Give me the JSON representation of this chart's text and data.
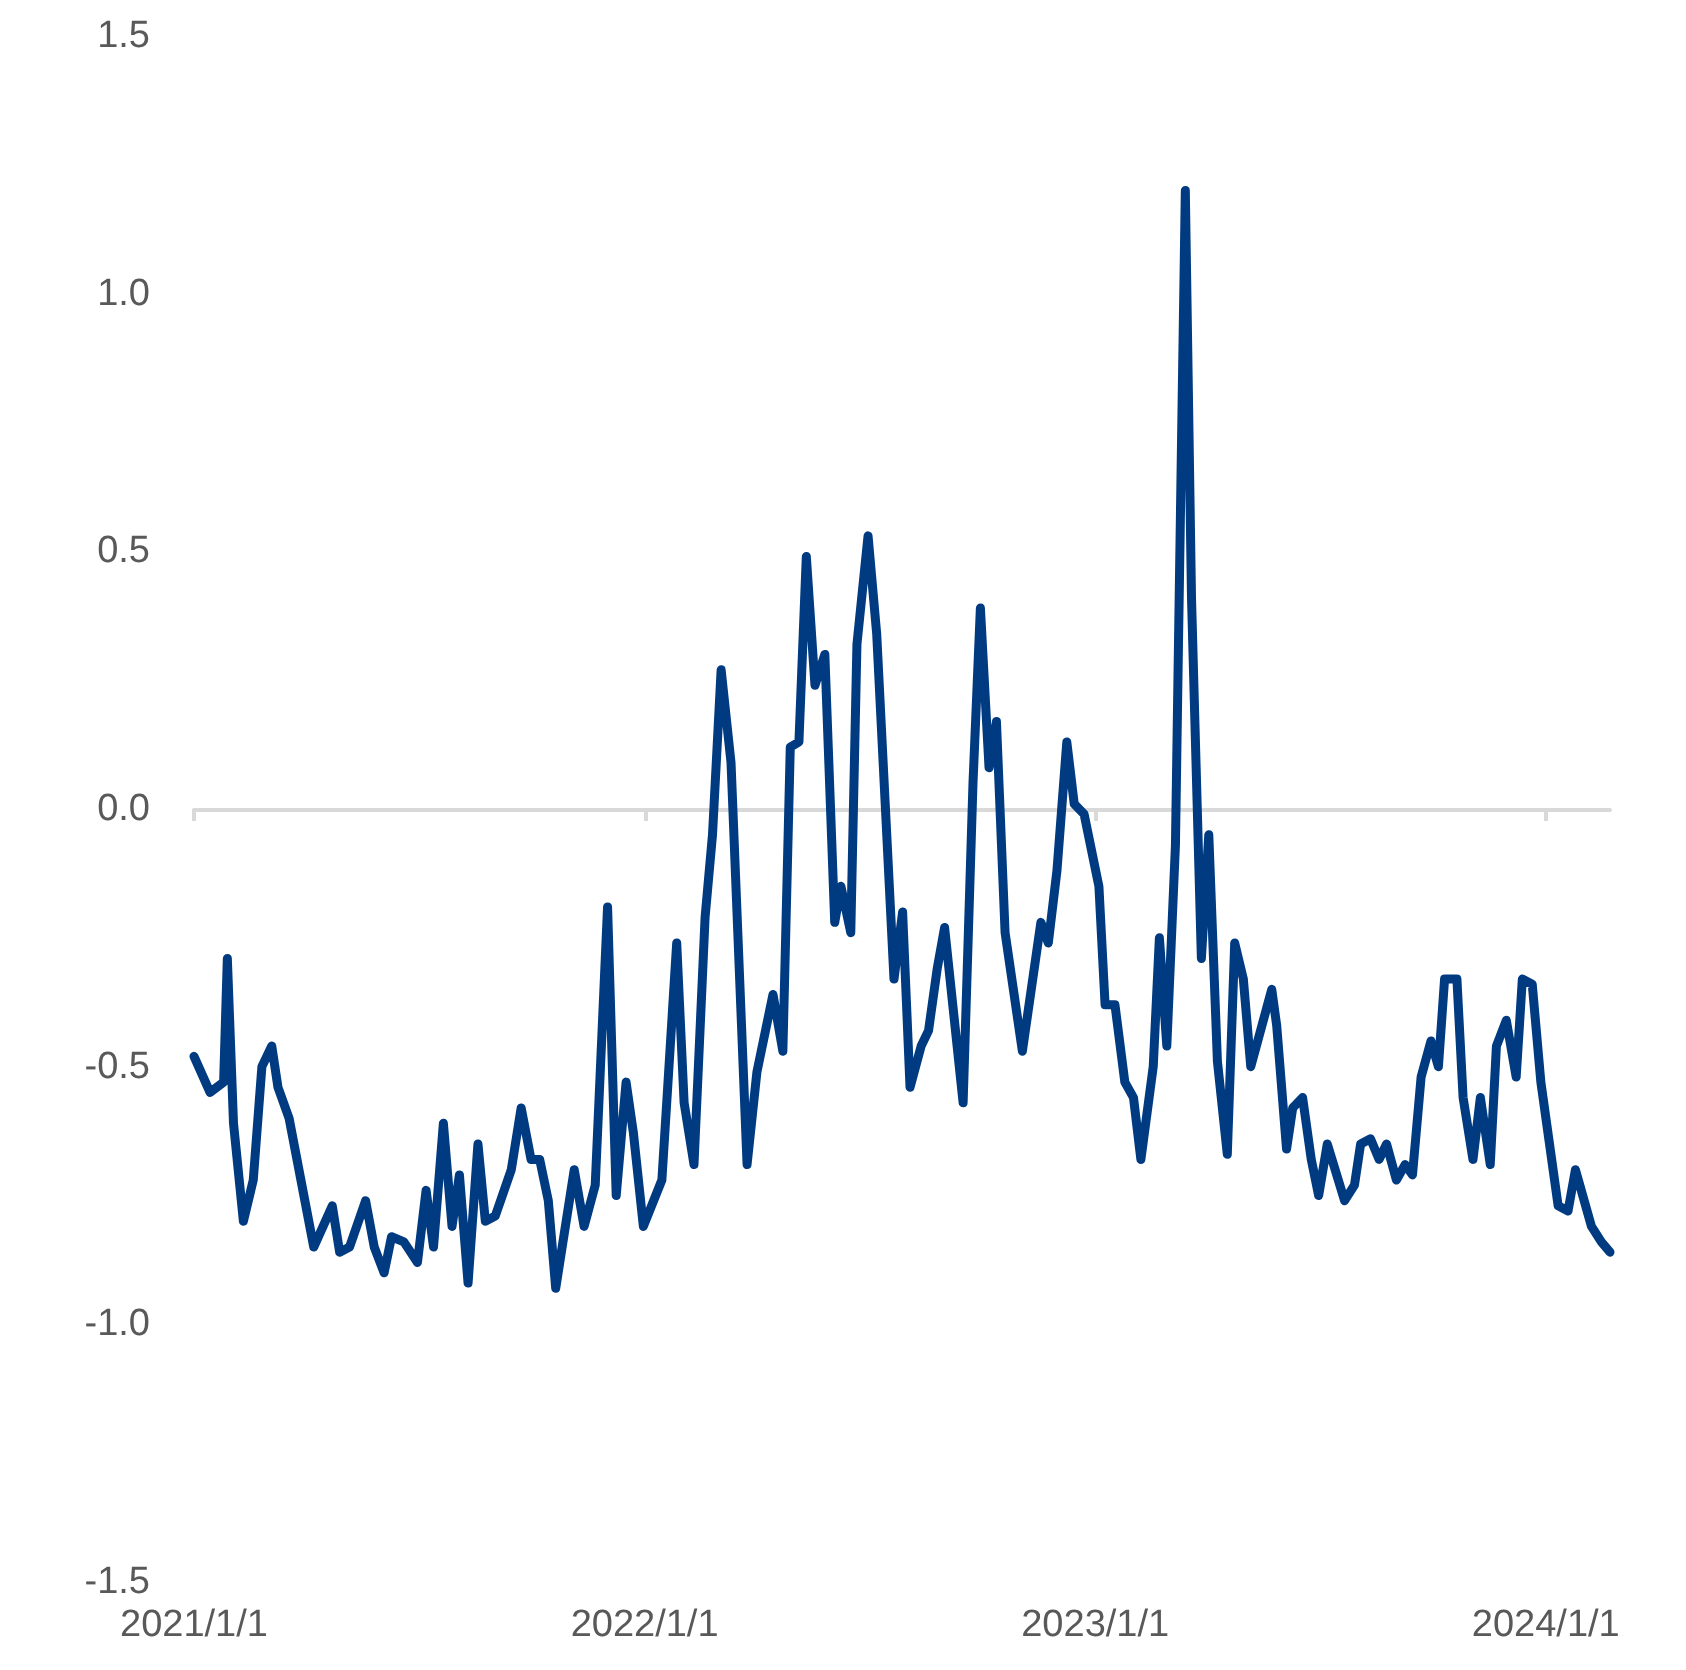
{
  "chart_data": {
    "type": "line",
    "x": [
      "2021-01-01",
      "2021-01-14",
      "2021-01-25",
      "2021-01-28",
      "2021-02-02",
      "2021-02-10",
      "2021-02-18",
      "2021-02-25",
      "2021-03-05",
      "2021-03-10",
      "2021-03-19",
      "2021-04-08",
      "2021-04-23",
      "2021-04-29",
      "2021-05-07",
      "2021-05-20",
      "2021-05-27",
      "2021-06-04",
      "2021-06-10",
      "2021-06-20",
      "2021-07-01",
      "2021-07-08",
      "2021-07-14",
      "2021-07-22",
      "2021-07-29",
      "2021-08-04",
      "2021-08-11",
      "2021-08-19",
      "2021-08-25",
      "2021-09-02",
      "2021-09-15",
      "2021-09-23",
      "2021-10-01",
      "2021-10-08",
      "2021-10-15",
      "2021-10-21",
      "2021-11-05",
      "2021-11-13",
      "2021-11-22",
      "2021-12-02",
      "2021-12-09",
      "2021-12-17",
      "2021-12-23",
      "2021-12-31",
      "2022-01-15",
      "2022-01-27",
      "2022-02-02",
      "2022-02-10",
      "2022-02-19",
      "2022-02-25",
      "2022-03-04",
      "2022-03-12",
      "2022-03-25",
      "2022-04-02",
      "2022-04-15",
      "2022-04-23",
      "2022-04-29",
      "2022-05-06",
      "2022-05-12",
      "2022-05-19",
      "2022-05-27",
      "2022-06-04",
      "2022-06-09",
      "2022-06-17",
      "2022-06-22",
      "2022-07-01",
      "2022-07-08",
      "2022-07-22",
      "2022-07-29",
      "2022-08-04",
      "2022-08-13",
      "2022-08-19",
      "2022-08-26",
      "2022-09-01",
      "2022-09-16",
      "2022-09-24",
      "2022-09-30",
      "2022-10-07",
      "2022-10-13",
      "2022-10-20",
      "2022-11-03",
      "2022-11-18",
      "2022-11-24",
      "2022-12-01",
      "2022-12-09",
      "2022-12-15",
      "2022-12-23",
      "2023-01-04",
      "2023-01-09",
      "2023-01-17",
      "2023-01-25",
      "2023-02-01",
      "2023-02-07",
      "2023-02-17",
      "2023-02-22",
      "2023-02-28",
      "2023-03-07",
      "2023-03-15",
      "2023-03-20",
      "2023-03-28",
      "2023-04-03",
      "2023-04-10",
      "2023-04-18",
      "2023-04-24",
      "2023-05-01",
      "2023-05-07",
      "2023-05-24",
      "2023-05-28",
      "2023-06-05",
      "2023-06-10",
      "2023-06-18",
      "2023-06-25",
      "2023-07-01",
      "2023-07-08",
      "2023-07-22",
      "2023-07-30",
      "2023-08-04",
      "2023-08-12",
      "2023-08-19",
      "2023-08-25",
      "2023-09-02",
      "2023-09-09",
      "2023-09-15",
      "2023-09-22",
      "2023-09-30",
      "2023-10-06",
      "2023-10-11",
      "2023-10-21",
      "2023-10-26",
      "2023-11-03",
      "2023-11-09",
      "2023-11-17",
      "2023-11-22",
      "2023-11-30",
      "2023-12-08",
      "2023-12-13",
      "2023-12-21",
      "2023-12-28",
      "2024-01-11",
      "2024-01-19",
      "2024-01-25",
      "2024-02-07",
      "2024-02-15",
      "2024-02-22"
    ],
    "series": [
      {
        "color": "#003a80",
        "values": [
          -0.48,
          -0.55,
          -0.53,
          -0.29,
          -0.61,
          -0.8,
          -0.72,
          -0.5,
          -0.46,
          -0.54,
          -0.6,
          -0.85,
          -0.77,
          -0.86,
          -0.85,
          -0.76,
          -0.85,
          -0.9,
          -0.83,
          -0.84,
          -0.88,
          -0.74,
          -0.85,
          -0.61,
          -0.81,
          -0.71,
          -0.92,
          -0.65,
          -0.8,
          -0.79,
          -0.7,
          -0.58,
          -0.68,
          -0.68,
          -0.76,
          -0.93,
          -0.7,
          -0.81,
          -0.73,
          -0.19,
          -0.75,
          -0.53,
          -0.63,
          -0.81,
          -0.72,
          -0.26,
          -0.57,
          -0.69,
          -0.21,
          -0.05,
          0.27,
          0.09,
          -0.69,
          -0.51,
          -0.36,
          -0.47,
          0.12,
          0.13,
          0.49,
          0.24,
          0.3,
          -0.22,
          -0.15,
          -0.24,
          0.32,
          0.53,
          0.34,
          -0.33,
          -0.2,
          -0.54,
          -0.46,
          -0.43,
          -0.31,
          -0.23,
          -0.57,
          0.05,
          0.39,
          0.08,
          0.17,
          -0.24,
          -0.47,
          -0.22,
          -0.26,
          -0.12,
          0.13,
          0.01,
          -0.01,
          -0.15,
          -0.38,
          -0.38,
          -0.53,
          -0.56,
          -0.68,
          -0.5,
          -0.25,
          -0.46,
          -0.07,
          1.2,
          0.41,
          -0.29,
          -0.05,
          -0.49,
          -0.67,
          -0.26,
          -0.33,
          -0.5,
          -0.35,
          -0.42,
          -0.66,
          -0.58,
          -0.56,
          -0.68,
          -0.75,
          -0.65,
          -0.76,
          -0.73,
          -0.65,
          -0.64,
          -0.68,
          -0.65,
          -0.72,
          -0.69,
          -0.71,
          -0.52,
          -0.45,
          -0.5,
          -0.33,
          -0.33,
          -0.56,
          -0.68,
          -0.56,
          -0.69,
          -0.46,
          -0.41,
          -0.52,
          -0.33,
          -0.34,
          -0.53,
          -0.77,
          -0.78,
          -0.7,
          -0.81,
          -0.84,
          -0.86
        ]
      }
    ],
    "xlim": [
      "2021-01-01",
      "2024-02-22"
    ],
    "xticks": [
      {
        "value": "2021-01-01",
        "label": "2021/1/1"
      },
      {
        "value": "2022-01-01",
        "label": "2022/1/1"
      },
      {
        "value": "2023-01-01",
        "label": "2023/1/1"
      },
      {
        "value": "2024-01-01",
        "label": "2024/1/1"
      }
    ],
    "ylim": [
      -1.5,
      1.5
    ],
    "yticks": [
      {
        "value": -1.5,
        "label": "-1.5"
      },
      {
        "value": -1,
        "label": "-1.0"
      },
      {
        "value": -0.5,
        "label": "-0.5"
      },
      {
        "value": 0,
        "label": "0.0"
      },
      {
        "value": 0.5,
        "label": "0.5"
      },
      {
        "value": 1,
        "label": "1.0"
      },
      {
        "value": 1.5,
        "label": "1.5"
      }
    ],
    "marker": "none",
    "line_style": "solid"
  }
}
